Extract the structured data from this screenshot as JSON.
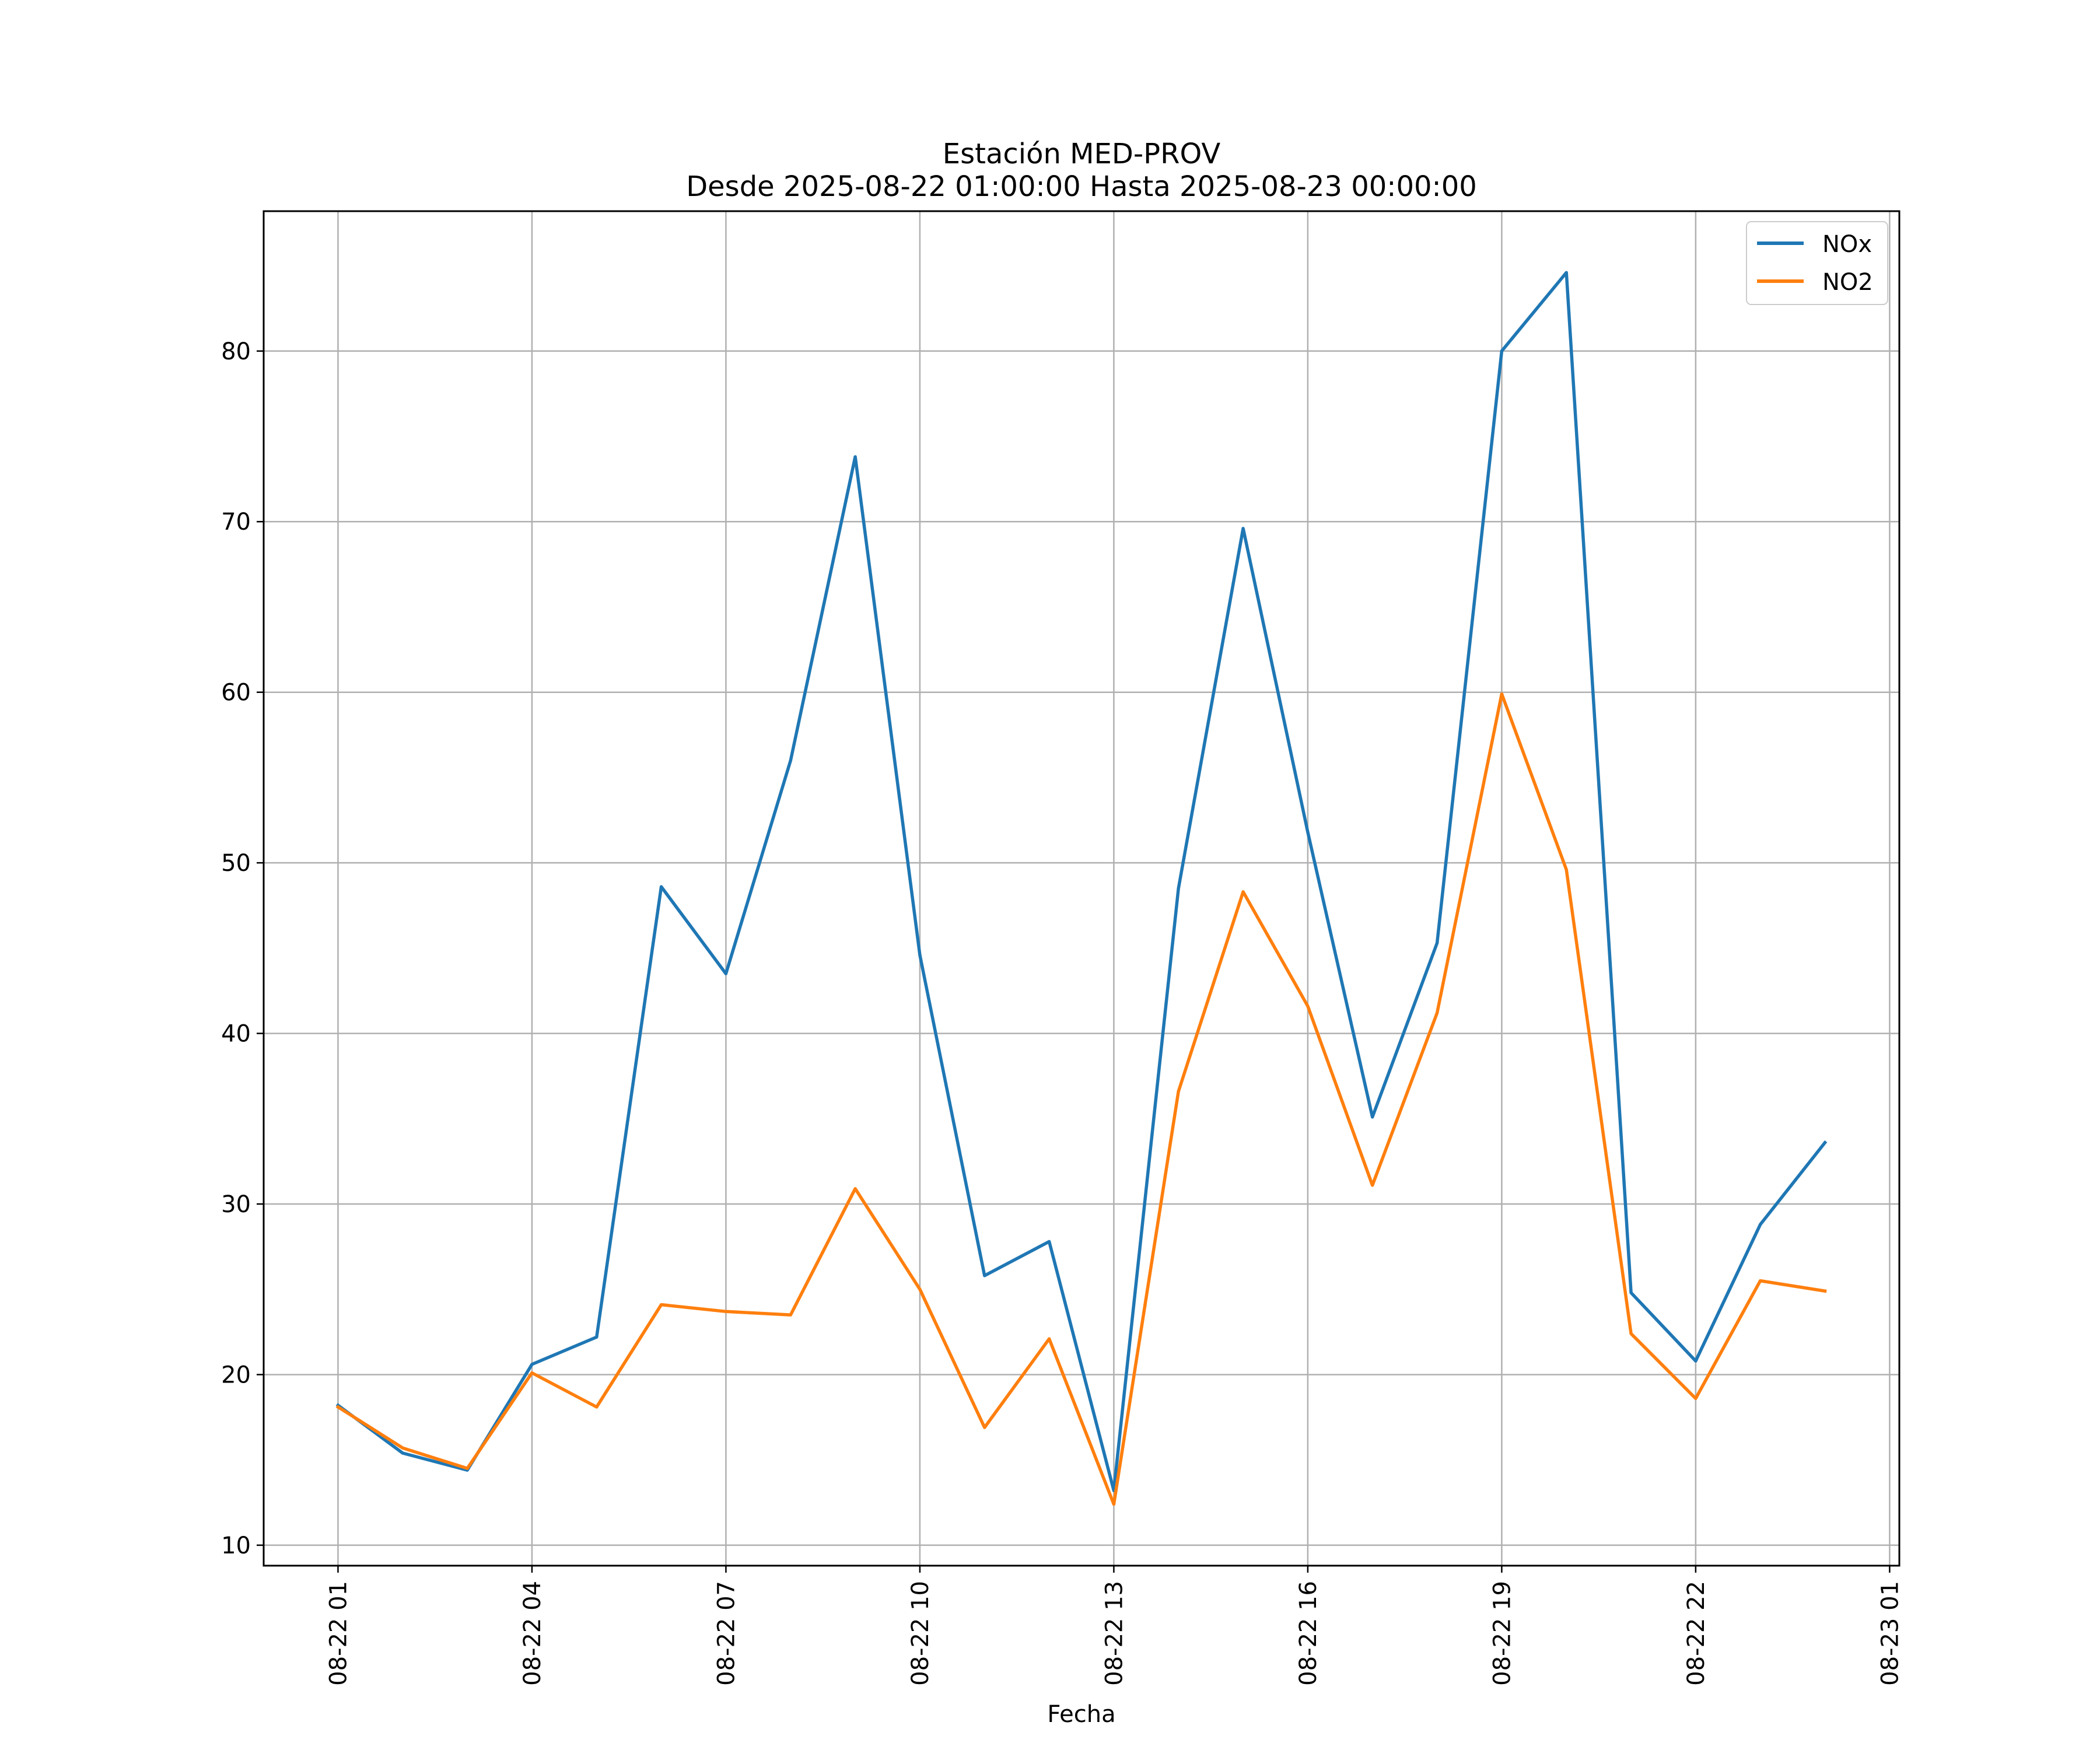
{
  "chart_data": {
    "type": "line",
    "title_line1": "Estación MED-PROV",
    "title_line2": "Desde 2025-08-22 01:00:00 Hasta 2025-08-23 00:00:00",
    "xlabel": "Fecha",
    "ylabel": "",
    "ylim": [
      8.8,
      88.2
    ],
    "yticks": [
      10,
      20,
      30,
      40,
      50,
      60,
      70,
      80
    ],
    "x_hours": [
      1,
      2,
      3,
      4,
      5,
      6,
      7,
      8,
      9,
      10,
      11,
      12,
      13,
      14,
      15,
      16,
      17,
      18,
      19,
      20,
      21,
      22,
      23,
      24
    ],
    "xlim_hours": [
      -0.15,
      25.15
    ],
    "xticks": [
      {
        "hour": 1,
        "label": "08-22 01"
      },
      {
        "hour": 4,
        "label": "08-22 04"
      },
      {
        "hour": 7,
        "label": "08-22 07"
      },
      {
        "hour": 10,
        "label": "08-22 10"
      },
      {
        "hour": 13,
        "label": "08-22 13"
      },
      {
        "hour": 16,
        "label": "08-22 16"
      },
      {
        "hour": 19,
        "label": "08-22 19"
      },
      {
        "hour": 22,
        "label": "08-22 22"
      },
      {
        "hour": 25,
        "label": "08-23 01"
      }
    ],
    "grid": true,
    "legend_position": "top-right",
    "series": [
      {
        "name": "NOx",
        "color": "#1f77b4",
        "values": [
          18.2,
          15.4,
          14.4,
          20.6,
          22.2,
          48.6,
          43.5,
          56.0,
          73.8,
          44.6,
          25.8,
          27.8,
          13.2,
          48.5,
          69.6,
          51.8,
          35.1,
          45.3,
          80.0,
          84.6,
          24.8,
          20.8,
          28.8,
          33.6
        ]
      },
      {
        "name": "NO2",
        "color": "#ff7f0e",
        "values": [
          18.1,
          15.7,
          14.5,
          20.1,
          18.1,
          24.1,
          23.7,
          23.5,
          30.9,
          25.0,
          16.9,
          22.1,
          12.4,
          36.6,
          48.3,
          41.6,
          31.1,
          41.2,
          59.9,
          49.6,
          22.4,
          18.6,
          25.5,
          24.9
        ]
      }
    ]
  }
}
